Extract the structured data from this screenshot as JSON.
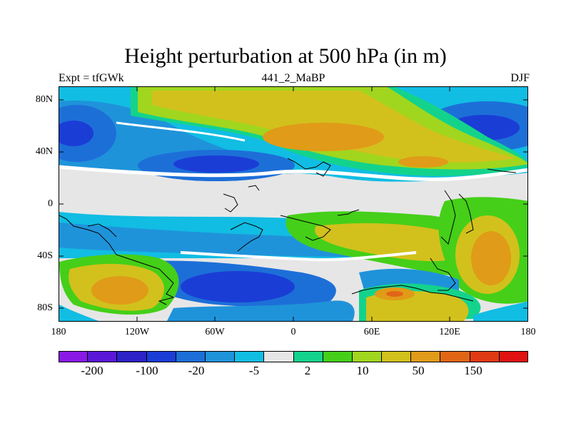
{
  "title": "Height perturbation at 500 hPa (in m)",
  "subtitle_left": "Expt = tfGWk",
  "subtitle_center": "441_2_MaBP",
  "subtitle_right": "DJF",
  "map": {
    "y_ticks": [
      "80N",
      "40N",
      "0",
      "40S",
      "80S"
    ],
    "x_ticks": [
      "180",
      "120W",
      "60W",
      "0",
      "60E",
      "120E",
      "180"
    ]
  },
  "colorbar": {
    "colors": [
      "#8a19e6",
      "#5a17d8",
      "#2d22c8",
      "#1a3dd6",
      "#1d6fd8",
      "#1f93da",
      "#11bde3",
      "#e6e6e6",
      "#13d38c",
      "#45cf19",
      "#a0d61e",
      "#d2c11c",
      "#e09b18",
      "#e06616",
      "#e03a14",
      "#e01212"
    ],
    "labels": [
      "-200",
      "-100",
      "-20",
      "-5",
      "2",
      "10",
      "50",
      "150"
    ]
  },
  "fields": {
    "land_outline_color": "#000000",
    "contour_gap_color": "#ffffff"
  }
}
